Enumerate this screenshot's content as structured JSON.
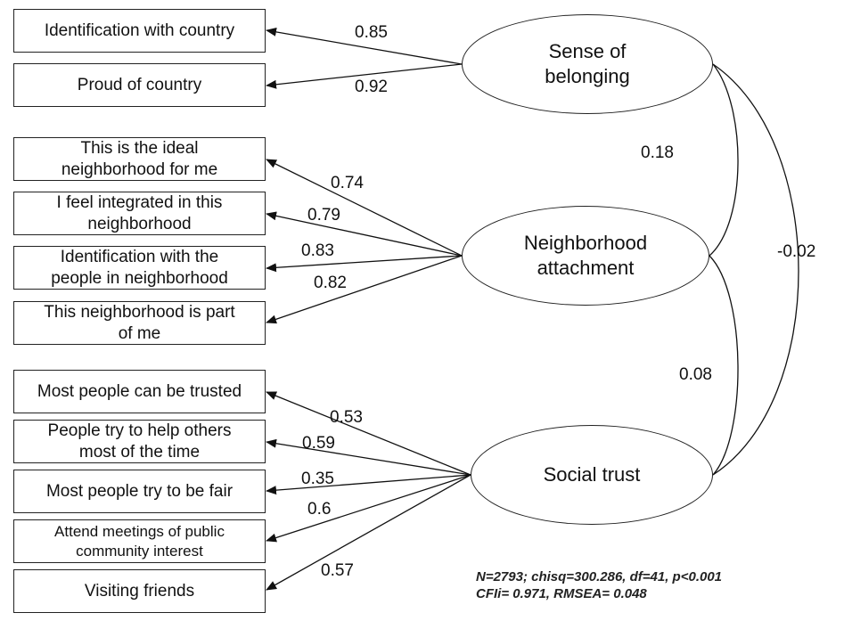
{
  "factors": [
    {
      "id": "belonging",
      "line1": "Sense of",
      "line2": "belonging"
    },
    {
      "id": "attachment",
      "line1": "Neighborhood",
      "line2": "attachment"
    },
    {
      "id": "trust",
      "line1": "Social trust",
      "line2": ""
    }
  ],
  "indicators": [
    {
      "factor": "belonging",
      "line1": "Identification with country",
      "line2": "",
      "loading": "0.85"
    },
    {
      "factor": "belonging",
      "line1": "Proud of country",
      "line2": "",
      "loading": "0.92"
    },
    {
      "factor": "attachment",
      "line1": "This is the ideal",
      "line2": "neighborhood for me",
      "loading": "0.74"
    },
    {
      "factor": "attachment",
      "line1": "I feel integrated in this",
      "line2": "neighborhood",
      "loading": "0.79"
    },
    {
      "factor": "attachment",
      "line1": "Identification with the",
      "line2": "people in neighborhood",
      "loading": "0.83"
    },
    {
      "factor": "attachment",
      "line1": "This neighborhood is part",
      "line2": "of me",
      "loading": "0.82"
    },
    {
      "factor": "trust",
      "line1": "Most people can be trusted",
      "line2": "",
      "loading": "0.53"
    },
    {
      "factor": "trust",
      "line1": "People try to help others",
      "line2": "most of the time",
      "loading": "0.59"
    },
    {
      "factor": "trust",
      "line1": "Most people try to be fair",
      "line2": "",
      "loading": "0.35"
    },
    {
      "factor": "trust",
      "line1": "Attend meetings of public",
      "line2": "community interest",
      "loading": "0.6"
    },
    {
      "factor": "trust",
      "line1": "Visiting friends",
      "line2": "",
      "loading": "0.57"
    }
  ],
  "correlations": [
    {
      "from": "belonging",
      "to": "attachment",
      "value": "0.18"
    },
    {
      "from": "attachment",
      "to": "trust",
      "value": "0.08"
    },
    {
      "from": "belonging",
      "to": "trust",
      "value": "-0.02"
    }
  ],
  "fit": {
    "line1": "N=2793; chisq=300.286, df=41, p<0.001",
    "line2": "CFIi= 0.971, RMSEA= 0.048"
  }
}
